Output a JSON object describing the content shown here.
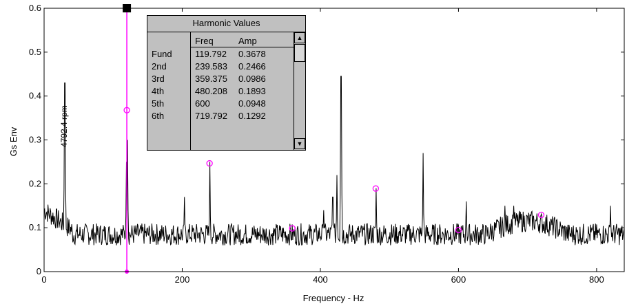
{
  "chart_data": {
    "type": "line",
    "title": "",
    "xlabel": "Frequency - Hz",
    "ylabel": "Gs Env",
    "xlim": [
      0,
      840
    ],
    "ylim": [
      0,
      0.6
    ],
    "xticks": [
      "0",
      "200",
      "400",
      "600",
      "800"
    ],
    "yticks": [
      "0",
      "0.1",
      "0.2",
      "0.3",
      "0.4",
      "0.5",
      "0.6"
    ],
    "grid": false,
    "series_color": "#000000",
    "marker_color": "#ff00ff",
    "cursor": {
      "x": 119.792,
      "ymax": 0.6
    },
    "annotation": {
      "text": "4792.4 rpm",
      "x": 30
    },
    "peaks": [
      {
        "x": 30,
        "y": 0.43
      },
      {
        "x": 119,
        "y": 0.25
      },
      {
        "x": 121,
        "y": 0.3
      },
      {
        "x": 203,
        "y": 0.17
      },
      {
        "x": 240,
        "y": 0.25
      },
      {
        "x": 405,
        "y": 0.14
      },
      {
        "x": 418,
        "y": 0.17
      },
      {
        "x": 424,
        "y": 0.22
      },
      {
        "x": 430,
        "y": 0.445
      },
      {
        "x": 481,
        "y": 0.19
      },
      {
        "x": 549,
        "y": 0.27
      },
      {
        "x": 611,
        "y": 0.16
      },
      {
        "x": 667,
        "y": 0.15
      },
      {
        "x": 680,
        "y": 0.15
      },
      {
        "x": 820,
        "y": 0.15
      }
    ],
    "baseline": {
      "level": 0.085,
      "start_level": 0.13
    },
    "harmonic_markers": [
      {
        "x": 119.792,
        "y": 0.3678
      },
      {
        "x": 239.583,
        "y": 0.2466
      },
      {
        "x": 359.375,
        "y": 0.0986
      },
      {
        "x": 480.208,
        "y": 0.1893
      },
      {
        "x": 600,
        "y": 0.0948
      },
      {
        "x": 719.792,
        "y": 0.1292
      }
    ]
  },
  "harmonic_table": {
    "title": "Harmonic Values",
    "headers": [
      "",
      "Freq",
      "Amp"
    ],
    "rows": [
      [
        "Fund",
        "119.792",
        "0.3678"
      ],
      [
        "2nd",
        "239.583",
        "0.2466"
      ],
      [
        "3rd",
        "359.375",
        "0.0986"
      ],
      [
        "4th",
        "480.208",
        "0.1893"
      ],
      [
        "5th",
        "600",
        "0.0948"
      ],
      [
        "6th",
        "719.792",
        "0.1292"
      ]
    ],
    "scroll_up_glyph": "▲",
    "scroll_down_glyph": "▼"
  }
}
